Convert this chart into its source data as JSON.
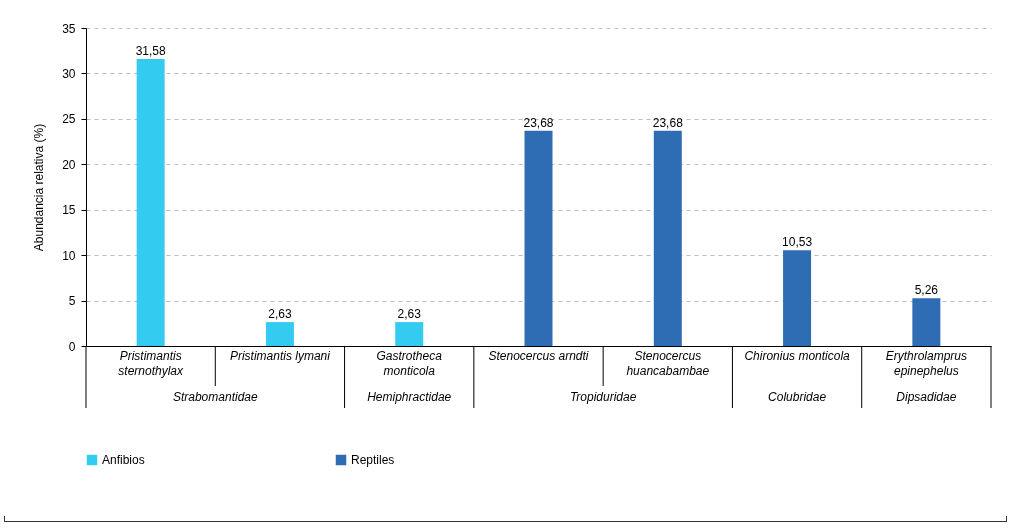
{
  "chart_data": {
    "type": "bar",
    "ylabel": "Abundancia relativa (%)",
    "categories": [
      "Pristimantis sternothylax",
      "Pristimantis lymani",
      "Gastrotheca monticola",
      "Stenocercus arndti",
      "Stenocercus huancabambae",
      "Chironius monticola",
      "Erythrolamprus epinephelus"
    ],
    "series": [
      {
        "name": "Anfibios",
        "color": "#33ccf0",
        "values": [
          31.58,
          2.63,
          2.63,
          null,
          null,
          null,
          null
        ],
        "value_labels": [
          "31,58",
          "2,63",
          "2,63",
          null,
          null,
          null,
          null
        ]
      },
      {
        "name": "Reptiles",
        "color": "#2e6db4",
        "values": [
          null,
          null,
          null,
          23.68,
          23.68,
          10.53,
          5.26
        ],
        "value_labels": [
          null,
          null,
          null,
          "23,68",
          "23,68",
          "10,53",
          "5,26"
        ]
      }
    ],
    "annotations": [
      "Strabomantidae",
      "Hemiphractidae",
      "Tropiduridae",
      "Colubridae",
      "Dipsadidae"
    ],
    "ylim": [
      0,
      35
    ],
    "yticks": [
      0,
      5,
      10,
      15,
      20,
      25,
      30,
      35
    ],
    "grid": "y",
    "legend": "bottom"
  }
}
